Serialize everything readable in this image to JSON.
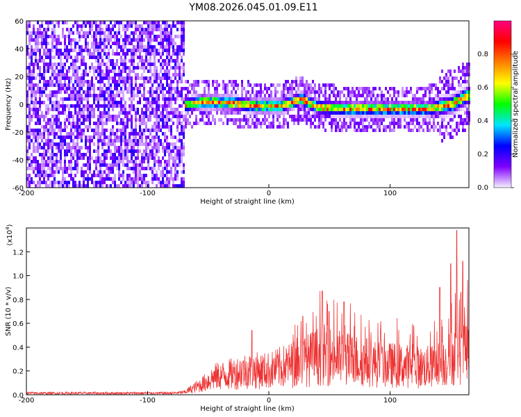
{
  "title": "YM08.2026.045.01.09.E11",
  "chart_data": [
    {
      "type": "heatmap",
      "xlabel": "Height of straight line (km)",
      "ylabel": "Frequency (Hz)",
      "xlim": [
        -200,
        165
      ],
      "ylim": [
        -60,
        60
      ],
      "x_ticks": [
        "-200",
        "-100",
        "0",
        "100"
      ],
      "y_ticks": [
        "60",
        "40",
        "20",
        "0",
        "-20",
        "-40",
        "-60"
      ],
      "colorbar": {
        "label": "Normalized spectral amplitude",
        "range": [
          0,
          1
        ],
        "ticks": [
          "0.8",
          "0.6",
          "0.4",
          "0.2",
          "0.0"
        ],
        "colors": [
          "#f7f0ff",
          "#7f00ff",
          "#0000ff",
          "#00e5ff",
          "#00ff00",
          "#ffff00",
          "#ff8000",
          "#ff0000",
          "#ff0080"
        ]
      },
      "noise_region_x": [
        -200,
        -70
      ],
      "signal_center_line": [
        {
          "x": -75,
          "f": 0
        },
        {
          "x": -55,
          "f": 3
        },
        {
          "x": -30,
          "f": 2
        },
        {
          "x": -10,
          "f": 0
        },
        {
          "x": 10,
          "f": 0
        },
        {
          "x": 26,
          "f": 5
        },
        {
          "x": 40,
          "f": -1
        },
        {
          "x": 60,
          "f": -2
        },
        {
          "x": 80,
          "f": -2
        },
        {
          "x": 100,
          "f": -2
        },
        {
          "x": 130,
          "f": -2
        },
        {
          "x": 150,
          "f": 1
        },
        {
          "x": 165,
          "f": 8
        }
      ]
    },
    {
      "type": "line",
      "xlabel": "Height of straight line (km)",
      "ylabel": "SNR (10 * v/v)",
      "scale_note": "(x10",
      "scale_exp": "4",
      "xlim": [
        -200,
        165
      ],
      "ylim": [
        0,
        1.4
      ],
      "x_ticks": [
        "-200",
        "-100",
        "0",
        "100"
      ],
      "y_ticks": [
        "1.2",
        "1.0",
        "0.8",
        "0.6",
        "0.4",
        "0.2",
        "0.0"
      ],
      "color": "#ee3333",
      "envelope": [
        {
          "x": -200,
          "v": 0.02
        },
        {
          "x": -150,
          "v": 0.02
        },
        {
          "x": -80,
          "v": 0.02
        },
        {
          "x": -70,
          "v": 0.03
        },
        {
          "x": -55,
          "v": 0.13
        },
        {
          "x": -45,
          "v": 0.22
        },
        {
          "x": -30,
          "v": 0.26
        },
        {
          "x": -20,
          "v": 0.3
        },
        {
          "x": -10,
          "v": 0.3
        },
        {
          "x": 0,
          "v": 0.3
        },
        {
          "x": 15,
          "v": 0.36
        },
        {
          "x": 30,
          "v": 0.42
        },
        {
          "x": 45,
          "v": 0.5
        },
        {
          "x": 60,
          "v": 0.45
        },
        {
          "x": 75,
          "v": 0.42
        },
        {
          "x": 90,
          "v": 0.38
        },
        {
          "x": 110,
          "v": 0.36
        },
        {
          "x": 125,
          "v": 0.34
        },
        {
          "x": 135,
          "v": 0.35
        },
        {
          "x": 145,
          "v": 0.4
        },
        {
          "x": 155,
          "v": 0.5
        },
        {
          "x": 165,
          "v": 0.55
        }
      ],
      "peaks": [
        {
          "x": -14,
          "v": 0.54
        },
        {
          "x": 28,
          "v": 0.66
        },
        {
          "x": 44,
          "v": 0.87
        },
        {
          "x": 62,
          "v": 0.78
        },
        {
          "x": 141,
          "v": 0.9
        },
        {
          "x": 150,
          "v": 1.1
        },
        {
          "x": 155,
          "v": 1.38
        },
        {
          "x": 160,
          "v": 1.12
        }
      ]
    }
  ]
}
